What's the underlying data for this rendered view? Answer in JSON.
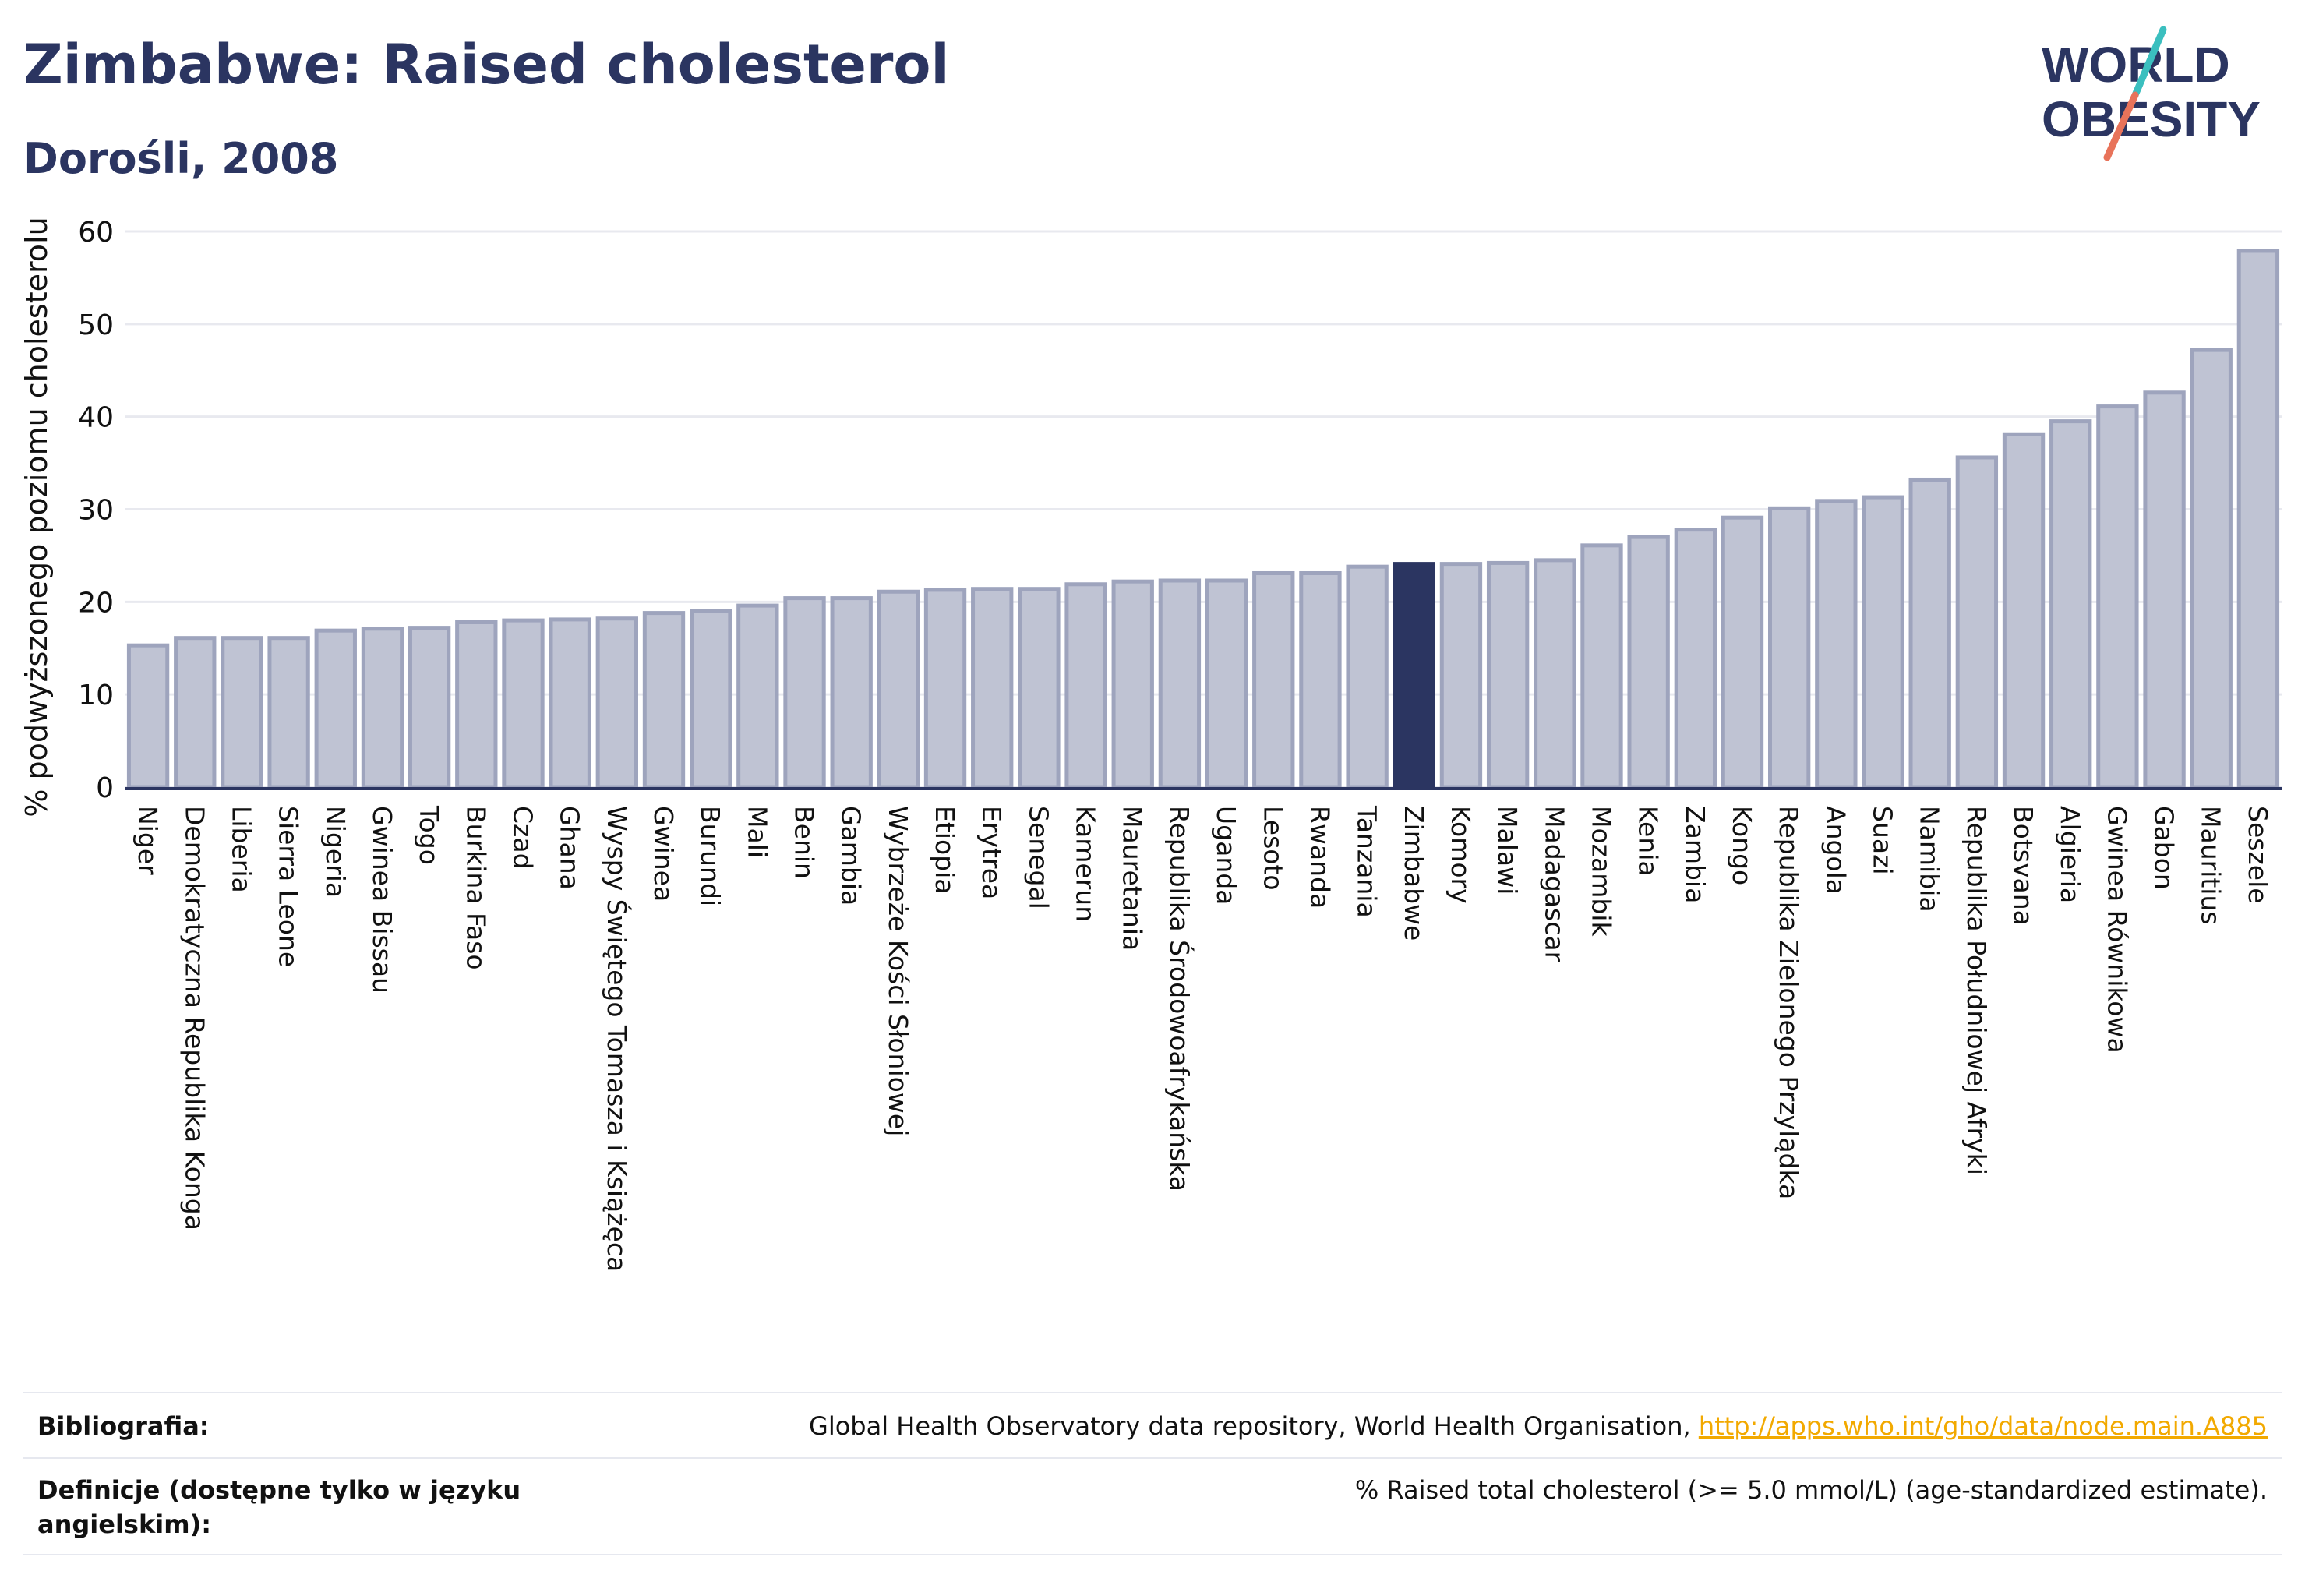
{
  "header": {
    "title": "Zimbabwe: Raised cholesterol",
    "subtitle": "Dorośli, 2008"
  },
  "logo": {
    "line1": "WORLD",
    "line2": "OBESITY",
    "accent_colors": [
      "#3bbfbf",
      "#e8735a"
    ]
  },
  "colors": {
    "bar": "#bfc3d3",
    "bar_border": "#9ea4bd",
    "highlight": "#2b3561",
    "grid": "#e8e9ef"
  },
  "chart_data": {
    "type": "bar",
    "ylabel": "% podwyższonego poziomu cholesterolu",
    "ylim": [
      0,
      60
    ],
    "yticks": [
      0,
      10,
      20,
      30,
      40,
      50,
      60
    ],
    "grid": true,
    "highlight": "Zimbabwe",
    "categories": [
      "Niger",
      "Demokratyczna Republika Konga",
      "Liberia",
      "Sierra Leone",
      "Nigeria",
      "Gwinea Bissau",
      "Togo",
      "Burkina Faso",
      "Czad",
      "Ghana",
      "Wyspy Świętego Tomasza i Książęca",
      "Gwinea",
      "Burundi",
      "Mali",
      "Benin",
      "Gambia",
      "Wybrzeże Kości Słoniowej",
      "Etiopia",
      "Erytrea",
      "Senegal",
      "Kamerun",
      "Mauretania",
      "Republika Środowoafrykańska",
      "Uganda",
      "Lesoto",
      "Rwanda",
      "Tanzania",
      "Zimbabwe",
      "Komory",
      "Malawi",
      "Madagascar",
      "Mozambik",
      "Kenia",
      "Zambia",
      "Kongo",
      "Republika Zielonego Przylądka",
      "Angola",
      "Suazi",
      "Namibia",
      "Republika Południowej Afryki",
      "Botsvana",
      "Algieria",
      "Gwinea Równikowa",
      "Gabon",
      "Mauritius",
      "Seszele"
    ],
    "values": [
      15.3,
      16.1,
      16.1,
      16.1,
      16.9,
      17.1,
      17.2,
      17.8,
      18.0,
      18.1,
      18.2,
      18.8,
      19.0,
      19.6,
      20.4,
      20.4,
      21.1,
      21.3,
      21.4,
      21.4,
      21.9,
      22.2,
      22.3,
      22.3,
      23.1,
      23.1,
      23.8,
      24.1,
      24.1,
      24.2,
      24.5,
      26.1,
      27.0,
      27.8,
      29.1,
      30.1,
      30.9,
      31.3,
      33.2,
      35.6,
      38.1,
      39.5,
      41.1,
      42.6,
      47.2,
      57.9
    ]
  },
  "footer": {
    "bibliography_label": "Bibliografia:",
    "bibliography_text": "Global Health Observatory data repository, World Health Organisation, ",
    "bibliography_link": "http://apps.who.int/gho/data/node.main.A885",
    "definition_label": "Definicje (dostępne tylko w języku angielskim):",
    "definition_text": "% Raised total cholesterol (>= 5.0 mmol/L) (age-standardized estimate)."
  }
}
